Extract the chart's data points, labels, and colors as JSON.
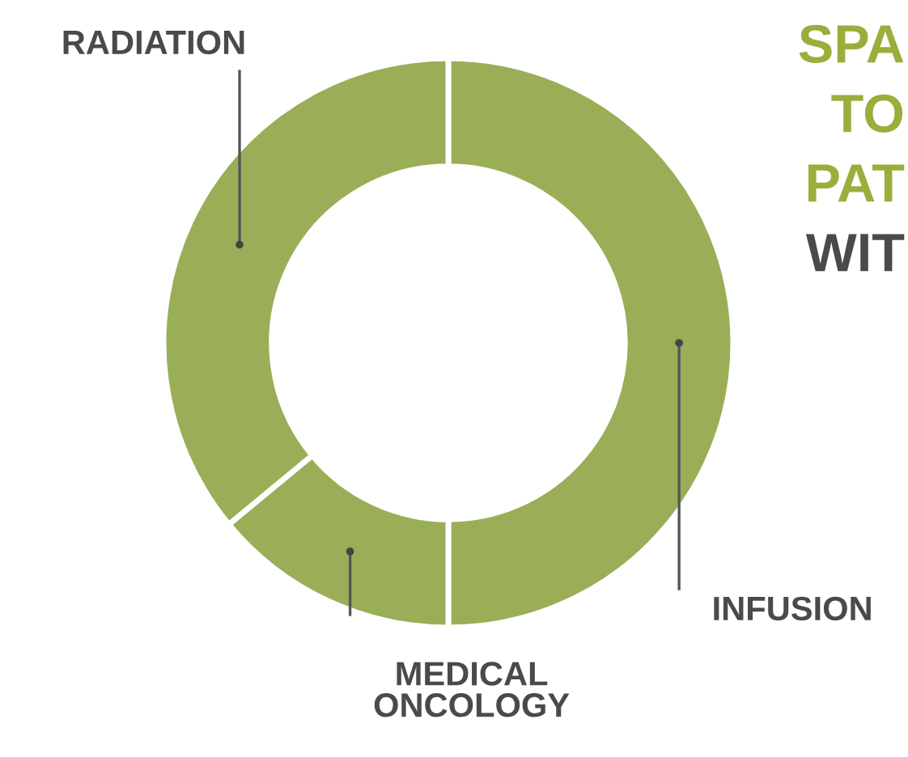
{
  "chart_data": {
    "type": "donut",
    "categories": [
      "INFUSION",
      "MEDICAL\nONCOLOGY",
      "RADIATION"
    ],
    "values": [
      50,
      14,
      36
    ],
    "colors": [
      "#9aae58",
      "#9aae58",
      "#9aae58"
    ],
    "annotations": [
      "SPA",
      "TO",
      "PAT",
      "WIT"
    ]
  }
}
